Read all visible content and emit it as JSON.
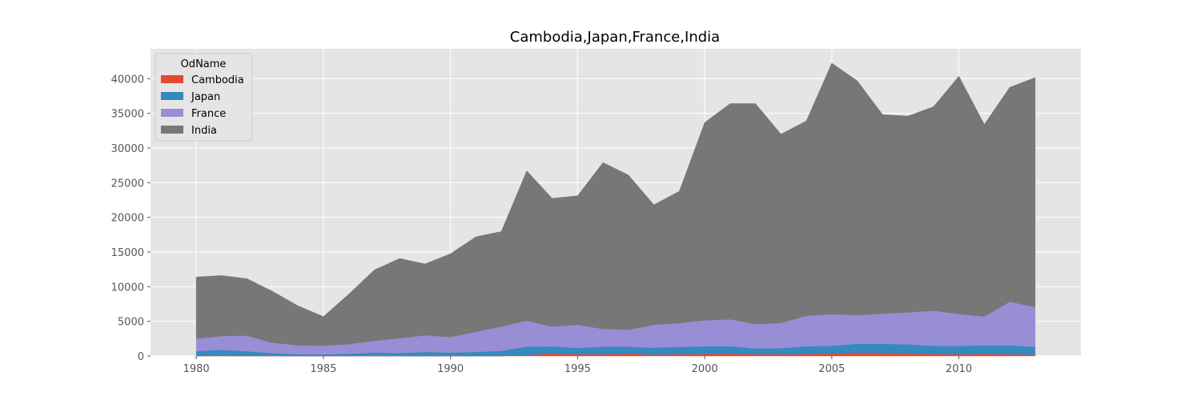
{
  "chart_data": {
    "type": "area",
    "stacked": true,
    "title": "Cambodia,Japan,France,India",
    "xlabel": "",
    "ylabel": "",
    "xlim": [
      1978.2,
      2014.8
    ],
    "ylim": [
      0,
      44300
    ],
    "x_ticks": [
      1980,
      1985,
      1990,
      1995,
      2000,
      2005,
      2010
    ],
    "y_ticks": [
      0,
      5000,
      10000,
      15000,
      20000,
      25000,
      30000,
      35000,
      40000
    ],
    "grid": true,
    "legend": {
      "title": "OdName",
      "placement": "top-left"
    },
    "x": [
      1980,
      1981,
      1982,
      1983,
      1984,
      1985,
      1986,
      1987,
      1988,
      1989,
      1990,
      1991,
      1992,
      1993,
      1994,
      1995,
      1996,
      1997,
      1998,
      1999,
      2000,
      2001,
      2002,
      2003,
      2004,
      2005,
      2006,
      2007,
      2008,
      2009,
      2010,
      2011,
      2012,
      2013
    ],
    "series": [
      {
        "name": "Cambodia",
        "color": "#E24A33",
        "values": [
          12,
          19,
          12,
          7,
          4,
          3,
          3,
          7,
          3,
          3,
          1,
          1,
          1,
          150,
          360,
          270,
          250,
          350,
          200,
          250,
          300,
          340,
          250,
          240,
          300,
          350,
          480,
          450,
          350,
          300,
          250,
          300,
          250,
          200
        ]
      },
      {
        "name": "Japan",
        "color": "#348ABD",
        "values": [
          688,
          881,
          681,
          413,
          237,
          240,
          320,
          500,
          410,
          580,
          490,
          590,
          750,
          1200,
          1030,
          900,
          1100,
          1000,
          1000,
          1080,
          1100,
          1090,
          850,
          900,
          1120,
          1130,
          1300,
          1300,
          1350,
          1150,
          1200,
          1250,
          1300,
          1100
        ]
      },
      {
        "name": "France",
        "color": "#988ED5",
        "values": [
          1800,
          2000,
          2250,
          1500,
          1300,
          1250,
          1400,
          1700,
          2150,
          2400,
          2250,
          2900,
          3500,
          3750,
          2850,
          3330,
          2550,
          2450,
          3300,
          3420,
          3750,
          3870,
          3500,
          3650,
          4380,
          4550,
          4120,
          4350,
          4600,
          5100,
          4600,
          4150,
          6300,
          5750
        ]
      },
      {
        "name": "India",
        "color": "#777777",
        "values": [
          8900,
          8700,
          8200,
          7400,
          5700,
          4200,
          7200,
          10200,
          11500,
          10300,
          12000,
          13700,
          13700,
          21600,
          18500,
          18600,
          24000,
          22300,
          17300,
          19000,
          28500,
          31100,
          31800,
          27200,
          28100,
          36200,
          33800,
          28700,
          28300,
          29400,
          34300,
          27700,
          30900,
          33100
        ]
      }
    ]
  }
}
